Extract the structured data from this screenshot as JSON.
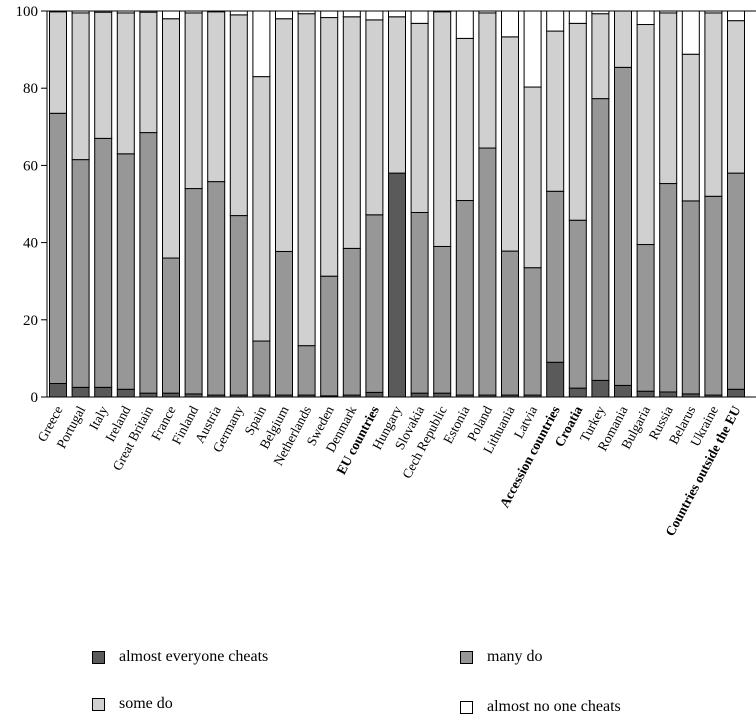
{
  "chart_data": {
    "type": "bar",
    "stacked": true,
    "categories": [
      "Greece",
      "Portugal",
      "Italy",
      "Ireland",
      "Great Britain",
      "France",
      "Finland",
      "Austria",
      "Germany",
      "Spain",
      "Belgium",
      "Netherlands",
      "Sweden",
      "Denmark",
      "EU countries",
      "Hungary",
      "Slovakia",
      "Cech Republic",
      "Estonia",
      "Poland",
      "Lithuania",
      "Latvia",
      "Accession countries",
      "Croatia",
      "Turkey",
      "Romania",
      "Bulgaria",
      "Russia",
      "Belarus",
      "Ukraine",
      "Countries outside the EU"
    ],
    "bold_categories": [
      "EU countries",
      "Accession countries",
      "Croatia",
      "Countries outside the EU"
    ],
    "ylim": [
      0,
      100
    ],
    "yticks": [
      0,
      20,
      40,
      60,
      80,
      100
    ],
    "xlabel": "",
    "ylabel": "",
    "title": "",
    "series": [
      {
        "name": "almost everyone cheats",
        "color": "#5a5a5a",
        "values": [
          3.5,
          2.5,
          2.5,
          2,
          1,
          1,
          0.8,
          0.5,
          0.5,
          0.5,
          0.5,
          0.5,
          0.3,
          0.5,
          1.2,
          58,
          1,
          1,
          0.5,
          0.5,
          0.5,
          0.5,
          9,
          2.3,
          4.3,
          3,
          1.5,
          1.3,
          0.8,
          0.5,
          2
        ]
      },
      {
        "name": "many do",
        "color": "#979797",
        "values": [
          70,
          59,
          64.5,
          61,
          67.5,
          35,
          53.2,
          55.3,
          46.5,
          14,
          37.2,
          12.8,
          31,
          38,
          46,
          0,
          46.8,
          38,
          50.4,
          64,
          37.3,
          33,
          44.3,
          43.5,
          73,
          82.4,
          38,
          54,
          50,
          51.5,
          56
        ]
      },
      {
        "name": "some do",
        "color": "#d0d0d0",
        "values": [
          26.3,
          38,
          32.7,
          36.5,
          31.2,
          62,
          45.5,
          44,
          52,
          68.5,
          60.3,
          86,
          67,
          60,
          50.5,
          40.5,
          49,
          60.8,
          42,
          35,
          55.5,
          46.8,
          41.5,
          51,
          22,
          14.6,
          57,
          44.2,
          38,
          47.5,
          39.5
        ]
      },
      {
        "name": "almost no one cheats",
        "color": "#ffffff",
        "values": [
          0.2,
          0.5,
          0.3,
          0.5,
          0.3,
          2,
          0.5,
          0.2,
          1,
          17,
          2,
          0.7,
          1.7,
          1.5,
          2.3,
          1.5,
          3.2,
          0.2,
          7.1,
          0.5,
          6.7,
          19.7,
          5.2,
          3.2,
          0.7,
          0,
          3.5,
          0.5,
          11.2,
          0.5,
          2.5
        ]
      }
    ],
    "legend_position": "bottom"
  }
}
